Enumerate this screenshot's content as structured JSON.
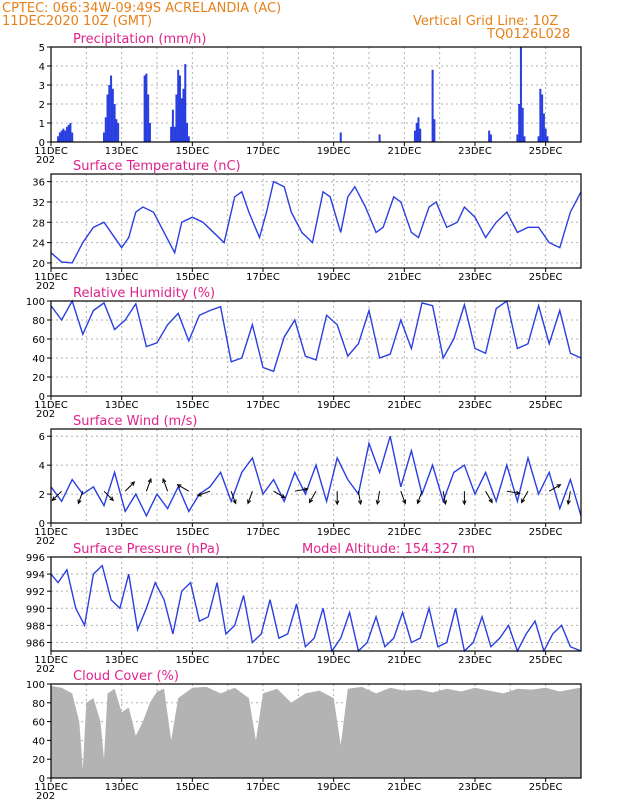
{
  "header": {
    "line1": "CPTEC:   066:34W-09:49S   ACRELANDIA (AC)",
    "line2": "11DEC2020 10Z (GMT)",
    "grid_note": "Vertical Grid Line: 10Z",
    "code": "TQ0126L028"
  },
  "colors": {
    "header": "#e8801a",
    "title": "#e0238c",
    "line": "#2a3fe0",
    "cloud": "#b3b3b3",
    "grid": "#b0b0b0"
  },
  "x_ticks": [
    "11DEC",
    "13DEC",
    "15DEC",
    "17DEC",
    "19DEC",
    "21DEC",
    "23DEC",
    "25DEC"
  ],
  "year_fragment": "202",
  "chart_data": [
    {
      "id": "precip",
      "type": "bar",
      "title": "Precipitation (mm/h)",
      "ylim": [
        0,
        5
      ],
      "yticks": [
        "0",
        "1",
        "2",
        "3",
        "4",
        "5"
      ],
      "x_unit": "days from 11DEC 10Z",
      "xlim": [
        0,
        15
      ],
      "x": [
        0.2,
        0.25,
        0.3,
        0.35,
        0.4,
        0.45,
        0.5,
        0.55,
        0.6,
        1.5,
        1.55,
        1.6,
        1.65,
        1.7,
        1.75,
        1.8,
        1.85,
        1.9,
        2.65,
        2.7,
        2.75,
        2.8,
        3.4,
        3.45,
        3.5,
        3.55,
        3.6,
        3.65,
        3.7,
        3.75,
        3.8,
        3.85,
        3.9,
        8.2,
        9.3,
        10.3,
        10.35,
        10.4,
        10.45,
        10.8,
        10.85,
        12.4,
        12.45,
        13.2,
        13.25,
        13.3,
        13.35,
        13.4,
        13.8,
        13.85,
        13.9,
        13.95,
        14.0,
        14.05
      ],
      "values": [
        0.3,
        0.5,
        0.6,
        0.7,
        0.6,
        0.8,
        0.9,
        1.0,
        0.5,
        0.5,
        1.3,
        2.5,
        3.0,
        3.5,
        2.8,
        2.0,
        1.2,
        1.0,
        3.5,
        3.6,
        2.5,
        1.0,
        0.8,
        1.7,
        0.8,
        2.5,
        3.8,
        3.5,
        2.3,
        2.8,
        4.1,
        1.0,
        0.3,
        0.5,
        0.4,
        0.6,
        1.0,
        1.3,
        0.7,
        3.8,
        1.2,
        0.6,
        0.4,
        0.4,
        2.0,
        5.0,
        1.8,
        0.3,
        0.3,
        2.8,
        2.5,
        1.5,
        0.7,
        0.3
      ]
    },
    {
      "id": "temp",
      "type": "line",
      "title": "Surface Temperature (nC)",
      "ylim": [
        19,
        37.5
      ],
      "yticks": [
        "20",
        "24",
        "28",
        "32",
        "36"
      ],
      "ytick_values": [
        20,
        24,
        28,
        32,
        36
      ],
      "x_unit": "days from 11DEC 10Z",
      "xlim": [
        0,
        15
      ],
      "x": [
        0,
        0.3,
        0.6,
        0.9,
        1.2,
        1.5,
        1.7,
        2.0,
        2.2,
        2.4,
        2.6,
        2.9,
        3.2,
        3.5,
        3.7,
        4.0,
        4.3,
        4.6,
        4.9,
        5.2,
        5.4,
        5.6,
        5.9,
        6.1,
        6.3,
        6.6,
        6.8,
        7.1,
        7.4,
        7.7,
        7.9,
        8.2,
        8.4,
        8.6,
        8.9,
        9.2,
        9.4,
        9.7,
        9.9,
        10.2,
        10.4,
        10.7,
        10.9,
        11.2,
        11.5,
        11.7,
        12.0,
        12.3,
        12.6,
        12.9,
        13.2,
        13.5,
        13.8,
        14.1,
        14.4,
        14.7,
        15
      ],
      "y": [
        22,
        20.2,
        20,
        24,
        27,
        28,
        26,
        23,
        25,
        30,
        31,
        30,
        26,
        22,
        28,
        29,
        28,
        26,
        24,
        33,
        34,
        30,
        25,
        30,
        36,
        35,
        30,
        26,
        24,
        34,
        33,
        26,
        33,
        35,
        31,
        26,
        27,
        33,
        32,
        26,
        25,
        31,
        32,
        27,
        28,
        31,
        29,
        25,
        28,
        30,
        26,
        27,
        27,
        24,
        23,
        30,
        34
      ]
    },
    {
      "id": "rh",
      "type": "line",
      "title": "Relative Humidity (%)",
      "ylim": [
        0,
        100
      ],
      "yticks": [
        "0",
        "20",
        "40",
        "60",
        "80",
        "100"
      ],
      "ytick_values": [
        0,
        20,
        40,
        60,
        80,
        100
      ],
      "x_unit": "days from 11DEC 10Z",
      "xlim": [
        0,
        15
      ],
      "x": [
        0,
        0.3,
        0.6,
        0.9,
        1.2,
        1.5,
        1.8,
        2.1,
        2.4,
        2.7,
        3.0,
        3.3,
        3.6,
        3.9,
        4.2,
        4.5,
        4.8,
        5.1,
        5.4,
        5.7,
        6.0,
        6.3,
        6.6,
        6.9,
        7.2,
        7.5,
        7.8,
        8.1,
        8.4,
        8.7,
        9.0,
        9.3,
        9.6,
        9.9,
        10.2,
        10.5,
        10.8,
        11.1,
        11.4,
        11.7,
        12.0,
        12.3,
        12.6,
        12.9,
        13.2,
        13.5,
        13.8,
        14.1,
        14.4,
        14.7,
        15
      ],
      "y": [
        95,
        80,
        100,
        65,
        90,
        98,
        70,
        80,
        97,
        52,
        56,
        75,
        87,
        58,
        85,
        90,
        94,
        36,
        40,
        75,
        30,
        26,
        62,
        80,
        42,
        38,
        85,
        75,
        42,
        55,
        90,
        40,
        44,
        80,
        50,
        98,
        95,
        40,
        60,
        96,
        50,
        45,
        92,
        100,
        50,
        55,
        95,
        55,
        90,
        45,
        40
      ]
    },
    {
      "id": "wind",
      "type": "line",
      "title": "Surface Wind (m/s)",
      "ylim": [
        0,
        6.5
      ],
      "yticks": [
        "0",
        "2",
        "4",
        "6"
      ],
      "ytick_values": [
        0,
        2,
        4,
        6
      ],
      "x_unit": "days from 11DEC 10Z",
      "xlim": [
        0,
        15
      ],
      "x": [
        0,
        0.3,
        0.6,
        0.9,
        1.2,
        1.5,
        1.8,
        2.1,
        2.4,
        2.7,
        3.0,
        3.3,
        3.6,
        3.9,
        4.2,
        4.5,
        4.8,
        5.1,
        5.4,
        5.7,
        6.0,
        6.3,
        6.6,
        6.9,
        7.2,
        7.5,
        7.8,
        8.1,
        8.4,
        8.7,
        9.0,
        9.3,
        9.6,
        9.9,
        10.2,
        10.5,
        10.8,
        11.1,
        11.4,
        11.7,
        12.0,
        12.3,
        12.6,
        12.9,
        13.2,
        13.5,
        13.8,
        14.1,
        14.4,
        14.7,
        15
      ],
      "y": [
        2.5,
        1.5,
        3.0,
        2.0,
        2.5,
        1.2,
        3.5,
        0.8,
        2.0,
        0.5,
        2.0,
        1.0,
        2.5,
        0.8,
        2.0,
        2.5,
        3.5,
        1.5,
        3.5,
        4.5,
        2.0,
        3.0,
        1.5,
        3.5,
        2.0,
        4.0,
        1.5,
        4.5,
        3.0,
        2.0,
        5.5,
        3.5,
        6.0,
        2.5,
        5.0,
        2.0,
        4.0,
        1.5,
        3.5,
        4.0,
        2.0,
        3.5,
        1.5,
        4.0,
        1.5,
        4.5,
        2.0,
        3.5,
        1.0,
        3.0,
        0.5
      ],
      "arrow_x": [
        0.3,
        0.9,
        1.5,
        2.1,
        2.7,
        3.3,
        3.9,
        4.5,
        5.1,
        5.7,
        6.3,
        6.9,
        7.5,
        8.1,
        8.7,
        9.3,
        9.9,
        10.5,
        11.1,
        11.7,
        12.3,
        12.9,
        13.5,
        14.1,
        14.7
      ],
      "arrow_deg": [
        225,
        200,
        135,
        45,
        20,
        340,
        300,
        250,
        160,
        200,
        120,
        80,
        210,
        180,
        170,
        190,
        160,
        200,
        170,
        180,
        150,
        100,
        210,
        60,
        190
      ]
    },
    {
      "id": "pres",
      "type": "line",
      "title": "Surface Pressure (hPa)",
      "extra_label": "Model Altitude: 154.327 m",
      "ylim": [
        985,
        996
      ],
      "yticks": [
        "986",
        "988",
        "990",
        "992",
        "994",
        "996"
      ],
      "ytick_values": [
        986,
        988,
        990,
        992,
        994,
        996
      ],
      "x_unit": "days from 11DEC 10Z",
      "xlim": [
        0,
        15
      ],
      "x": [
        0,
        0.2,
        0.45,
        0.7,
        0.95,
        1.2,
        1.45,
        1.7,
        1.95,
        2.2,
        2.45,
        2.7,
        2.95,
        3.2,
        3.45,
        3.7,
        3.95,
        4.2,
        4.45,
        4.7,
        4.95,
        5.2,
        5.45,
        5.7,
        5.95,
        6.2,
        6.45,
        6.7,
        6.95,
        7.2,
        7.45,
        7.7,
        7.95,
        8.2,
        8.45,
        8.7,
        8.95,
        9.2,
        9.45,
        9.7,
        9.95,
        10.2,
        10.45,
        10.7,
        10.95,
        11.2,
        11.45,
        11.7,
        11.95,
        12.2,
        12.45,
        12.7,
        12.95,
        13.2,
        13.45,
        13.7,
        13.95,
        14.2,
        14.45,
        14.7,
        15
      ],
      "y": [
        994,
        993,
        994.5,
        990,
        988,
        994,
        995,
        991,
        990,
        994,
        987.5,
        990,
        993,
        991,
        987,
        992,
        993,
        988.5,
        989,
        993,
        987,
        988,
        991.5,
        986,
        987,
        991,
        986.5,
        987,
        990.5,
        985.5,
        986.5,
        990,
        985,
        986.5,
        989.5,
        985,
        986,
        989,
        985.5,
        986.5,
        989.5,
        986,
        986.5,
        990,
        985.5,
        986,
        990,
        985,
        986,
        989,
        985.5,
        986.5,
        988,
        985,
        987,
        988.5,
        985,
        987,
        988,
        985.5,
        985
      ]
    },
    {
      "id": "cloud",
      "type": "area",
      "title": "Cloud Cover (%)",
      "ylim": [
        0,
        100
      ],
      "yticks": [
        "0",
        "20",
        "40",
        "60",
        "80",
        "100"
      ],
      "ytick_values": [
        0,
        20,
        40,
        60,
        80,
        100
      ],
      "x_unit": "days from 11DEC 10Z",
      "xlim": [
        0,
        15
      ],
      "x": [
        0,
        0.3,
        0.6,
        0.8,
        0.9,
        1.0,
        1.2,
        1.4,
        1.5,
        1.6,
        1.8,
        2.0,
        2.2,
        2.4,
        2.6,
        2.8,
        3.0,
        3.2,
        3.4,
        3.6,
        4.0,
        4.4,
        4.8,
        5.2,
        5.6,
        5.8,
        6.0,
        6.4,
        6.8,
        7.2,
        7.6,
        8.0,
        8.2,
        8.4,
        8.8,
        9.2,
        9.6,
        10.0,
        10.4,
        10.8,
        11.2,
        11.6,
        12.0,
        12.4,
        12.8,
        13.2,
        13.6,
        14.0,
        14.4,
        14.8,
        15
      ],
      "y": [
        98,
        96,
        90,
        60,
        10,
        80,
        85,
        60,
        20,
        90,
        95,
        70,
        75,
        45,
        60,
        80,
        92,
        95,
        40,
        85,
        96,
        97,
        90,
        96,
        85,
        40,
        90,
        95,
        80,
        90,
        93,
        85,
        35,
        95,
        97,
        90,
        96,
        93,
        94,
        91,
        95,
        92,
        96,
        93,
        90,
        95,
        94,
        96,
        92,
        95,
        96
      ]
    }
  ]
}
